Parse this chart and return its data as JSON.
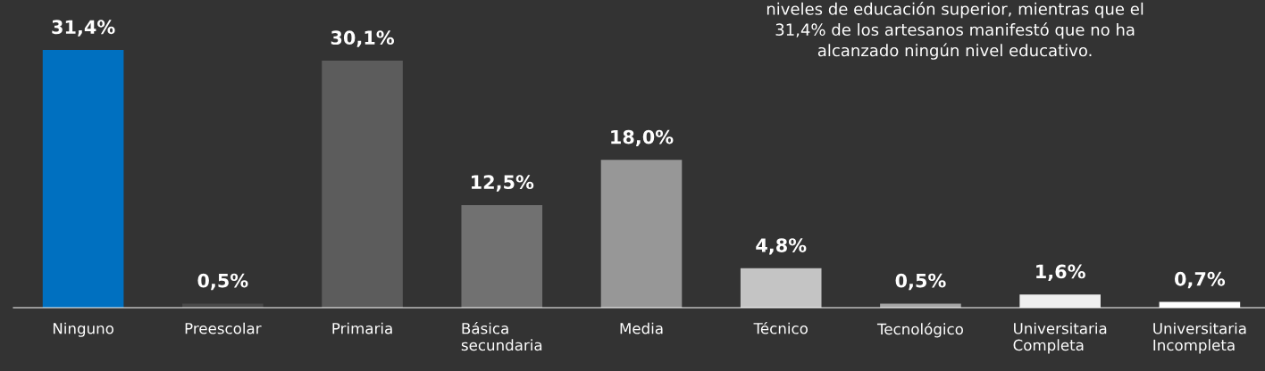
{
  "chart_data": {
    "type": "bar",
    "categories": [
      "Ninguno",
      "Preescolar",
      "Primaria",
      "Básica\nsecundaria",
      "Media",
      "Técnico",
      "Tecnológico",
      "Universitaria\nCompleta",
      "Universitaria\nIncompleta"
    ],
    "values": [
      31.4,
      0.5,
      30.1,
      12.5,
      18.0,
      4.8,
      0.5,
      1.6,
      0.7
    ],
    "value_labels": [
      "31,4%",
      "0,5%",
      "30,1%",
      "12,5%",
      "18,0%",
      "4,8%",
      "0,5%",
      "1,6%",
      "0,7%"
    ],
    "colors": [
      "#0070c0",
      "#4a4a4a",
      "#5c5c5c",
      "#717171",
      "#979797",
      "#c4c4c4",
      "#a6a6a6",
      "#efefef",
      "#ffffff"
    ],
    "annotations": [
      "niveles de educación superior, mientras que el\n31,4% de los artesanos manifestó que no ha\nalcanzado ningún nivel educativo."
    ],
    "grid": false,
    "legend": false
  }
}
